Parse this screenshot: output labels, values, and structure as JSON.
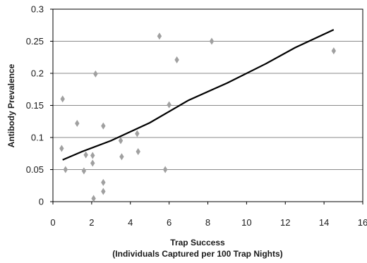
{
  "chart_data": {
    "type": "scatter",
    "title": "",
    "xlabel": "Trap Success",
    "xlabel_line2": "(Individuals Captured per 100 Trap Nights)",
    "ylabel": "Antibody Prevalence",
    "xlim": [
      0,
      16
    ],
    "ylim": [
      0,
      0.3
    ],
    "x_ticks": [
      "0",
      "2",
      "4",
      "6",
      "8",
      "10",
      "12",
      "14",
      "16"
    ],
    "y_ticks": [
      "0",
      "0.05",
      "0.1",
      "0.15",
      "0.2",
      "0.25",
      "0.3"
    ],
    "grid": "horizontal",
    "marker": "diamond",
    "marker_color": "#a0a0a0",
    "line_color": "#000000",
    "series": [
      {
        "type": "scatter",
        "points": [
          {
            "x": 0.45,
            "y": 0.083
          },
          {
            "x": 0.5,
            "y": 0.16
          },
          {
            "x": 0.65,
            "y": 0.05
          },
          {
            "x": 1.25,
            "y": 0.122
          },
          {
            "x": 1.6,
            "y": 0.048
          },
          {
            "x": 1.7,
            "y": 0.073
          },
          {
            "x": 2.05,
            "y": 0.072
          },
          {
            "x": 2.05,
            "y": 0.06
          },
          {
            "x": 2.1,
            "y": 0.005
          },
          {
            "x": 2.2,
            "y": 0.199
          },
          {
            "x": 2.6,
            "y": 0.118
          },
          {
            "x": 2.6,
            "y": 0.03
          },
          {
            "x": 2.6,
            "y": 0.016
          },
          {
            "x": 3.5,
            "y": 0.095
          },
          {
            "x": 3.55,
            "y": 0.07
          },
          {
            "x": 4.35,
            "y": 0.106
          },
          {
            "x": 4.4,
            "y": 0.078
          },
          {
            "x": 5.5,
            "y": 0.258
          },
          {
            "x": 5.8,
            "y": 0.05
          },
          {
            "x": 6.0,
            "y": 0.151
          },
          {
            "x": 6.4,
            "y": 0.221
          },
          {
            "x": 8.2,
            "y": 0.25
          },
          {
            "x": 14.5,
            "y": 0.235
          }
        ]
      },
      {
        "type": "line",
        "points": [
          {
            "x": 0.5,
            "y": 0.065
          },
          {
            "x": 1.5,
            "y": 0.078
          },
          {
            "x": 3.0,
            "y": 0.095
          },
          {
            "x": 5.0,
            "y": 0.123
          },
          {
            "x": 7.0,
            "y": 0.158
          },
          {
            "x": 9.0,
            "y": 0.185
          },
          {
            "x": 11.0,
            "y": 0.215
          },
          {
            "x": 12.5,
            "y": 0.24
          },
          {
            "x": 14.5,
            "y": 0.268
          }
        ]
      }
    ]
  }
}
